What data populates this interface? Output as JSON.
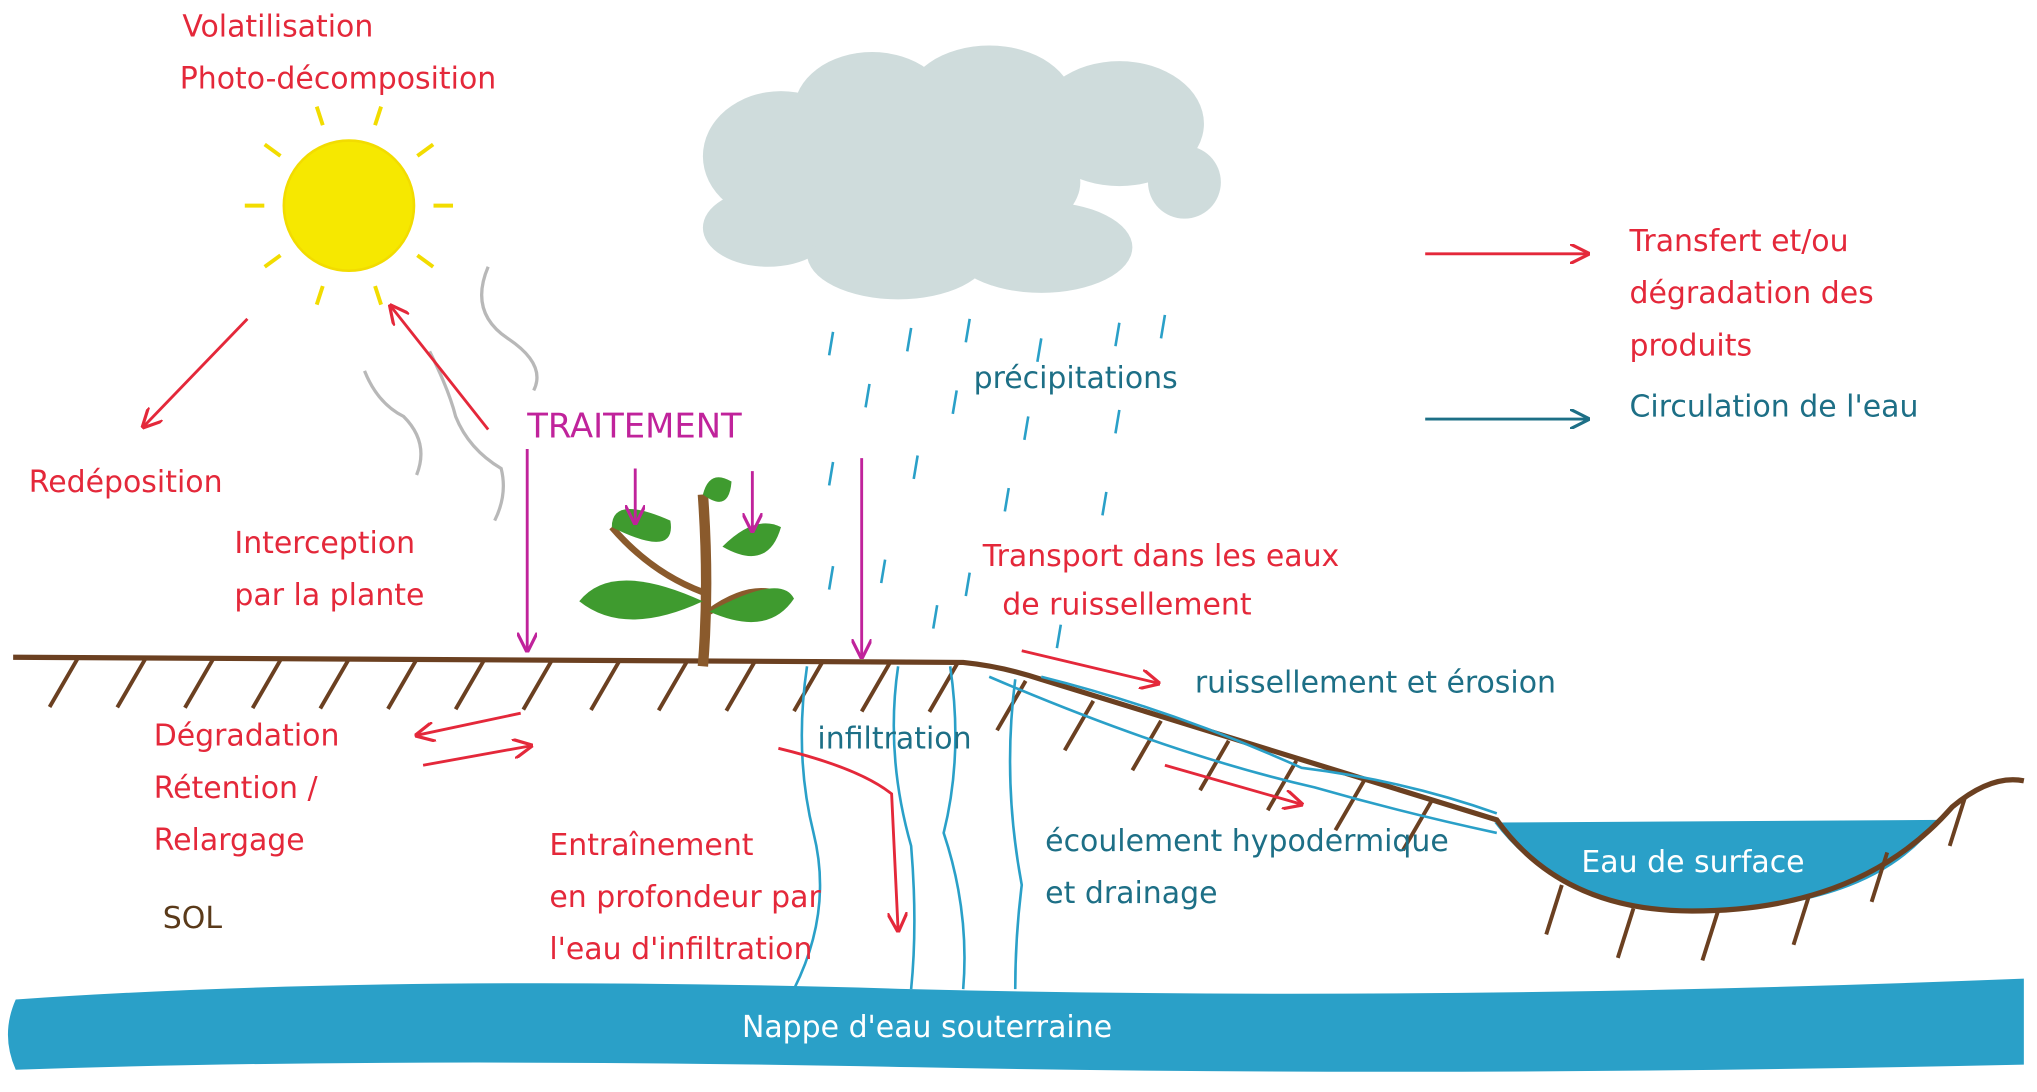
{
  "processes": {
    "sun": [
      "Volatilisation",
      "Photo-décomposition"
    ],
    "redeposition": "Redéposition",
    "interception": [
      "Interception",
      "par la plante"
    ],
    "treatment": "TRAITEMENT",
    "precipitation": "précipitations",
    "transport": [
      "Transport dans les eaux",
      "de ruissellement"
    ],
    "runoff": "ruissellement et érosion",
    "soil_processes": [
      "Dégradation",
      "Rétention /",
      "Relargage"
    ],
    "infiltration": "infiltration",
    "leaching": [
      "Entraînement",
      "en profondeur par",
      "l'eau d'infiltration"
    ],
    "subsurface": [
      "écoulement hypodermique",
      "et drainage"
    ],
    "soil": "SOL",
    "surface_water": "Eau de surface",
    "groundwater": "Nappe d'eau souterraine"
  },
  "legend": [
    {
      "label": [
        "Transfert et/ou",
        "dégradation des",
        "produits"
      ],
      "color": "#e4283a"
    },
    {
      "label": [
        "Circulation de l'eau"
      ],
      "color": "#1d6f86"
    }
  ]
}
